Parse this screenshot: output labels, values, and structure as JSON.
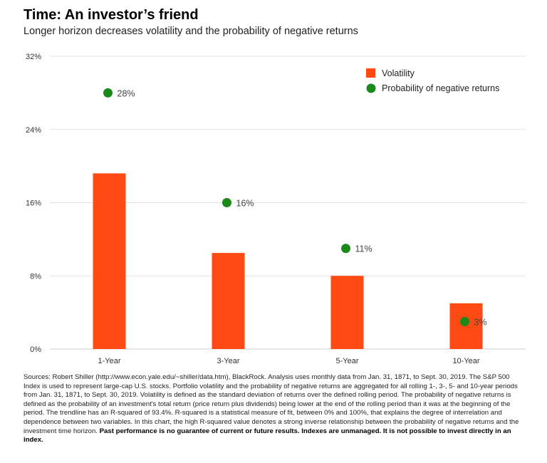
{
  "header": {
    "title": "Time: An investor’s friend",
    "subtitle": "Longer horizon decreases volatility and the probability of negative returns"
  },
  "chart_data": {
    "type": "bar",
    "categories": [
      "1-Year",
      "3-Year",
      "5-Year",
      "10-Year"
    ],
    "series": [
      {
        "name": "Volatility",
        "kind": "bar",
        "color": "#ff4a14",
        "values": [
          19.2,
          10.5,
          8.0,
          5.0
        ]
      },
      {
        "name": "Probability of negative returns",
        "kind": "scatter",
        "color": "#1a8a1a",
        "values": [
          28,
          16,
          11,
          3
        ],
        "labels": [
          "28%",
          "16%",
          "11%",
          "3%"
        ]
      }
    ],
    "y_ticks": [
      0,
      8,
      16,
      24,
      32
    ],
    "y_tick_labels": [
      "0%",
      "8%",
      "16%",
      "24%",
      "32%"
    ],
    "ylim": [
      0,
      32
    ],
    "grid": true,
    "legend_position": "top-right"
  },
  "footnote": {
    "text": "Sources: Robert Shiller (http://www.econ.yale.edu/~shiller/data.htm), BlackRock. Analysis uses monthly data from Jan. 31, 1871, to Sept. 30, 2019. The S&P 500 Index is used to represent large-cap U.S. stocks. Portfolio volatility and the probability of negative returns are aggregated for all rolling 1-, 3-, 5- and 10-year periods from Jan. 31, 1871, to Sept. 30, 2019. Volatility is defined as the standard deviation of returns over the defined rolling period. The probability of negative returns is defined as the probability of an investment's total return (price return plus dividends) being lower at the end of the rolling period than it was at the beginning of the period. The trendline has an R-squared of 93.4%. R-squared is a statistical measure of fit, between 0% and 100%, that explains the degree of interrelation and dependence between two variables. In this chart, the high R-squared value denotes a strong inverse relationship between the probability of negative returns and the investment time horizon.",
    "disclaimer": "Past performance is no guarantee of current or future results. Indexes are unmanaged. It is not possible to invest directly in an index."
  }
}
